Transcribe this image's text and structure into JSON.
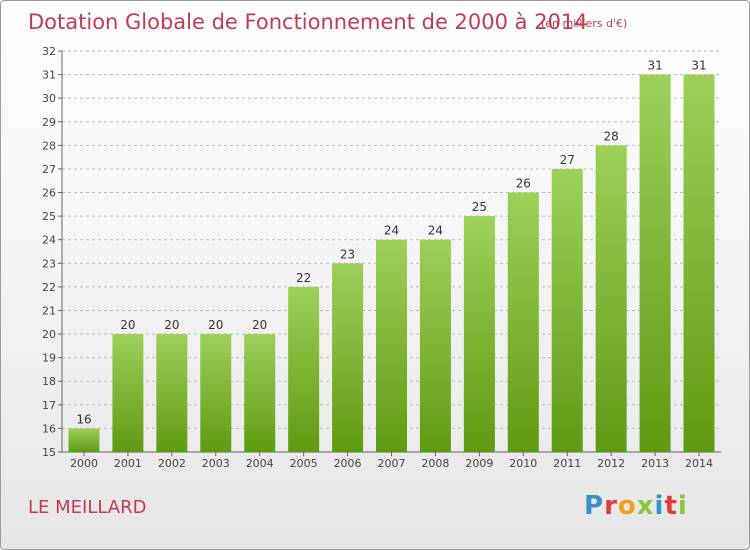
{
  "title": "Dotation Globale de Fonctionnement de 2000 à 2014",
  "subtitle": "(en milliers d'€)",
  "commune": "LE MEILLARD",
  "brand": {
    "text": "Proxiti",
    "colors": [
      "#3a8fd0",
      "#e03c3c",
      "#f0a020",
      "#8cc63f",
      "#3a8fd0",
      "#e03c3c",
      "#8cc63f"
    ]
  },
  "colors": {
    "bar_top": "#9ed05a",
    "bar_bottom": "#5e9a12",
    "text_accent": "#c23b54"
  },
  "chart_data": {
    "type": "bar",
    "title": "Dotation Globale de Fonctionnement de 2000 à 2014",
    "subtitle": "(en milliers d'€)",
    "categories": [
      "2000",
      "2001",
      "2002",
      "2003",
      "2004",
      "2005",
      "2006",
      "2007",
      "2008",
      "2009",
      "2010",
      "2011",
      "2012",
      "2013",
      "2014"
    ],
    "values": [
      16,
      20,
      20,
      20,
      20,
      22,
      23,
      24,
      24,
      25,
      26,
      27,
      28,
      31,
      31
    ],
    "xlabel": "",
    "ylabel": "",
    "ylim": [
      15,
      32
    ],
    "yticks": [
      15,
      16,
      17,
      18,
      19,
      20,
      21,
      22,
      23,
      24,
      25,
      26,
      27,
      28,
      29,
      30,
      31,
      32
    ],
    "grid": "horizontal dashed",
    "data_labels": true
  }
}
